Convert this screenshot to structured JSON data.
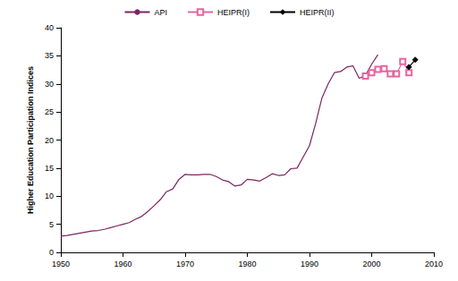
{
  "chart_data": {
    "type": "line",
    "y_label": "Higher Education Participation Indices",
    "series": [
      {
        "name": "API",
        "color": "#7d2460",
        "marker": "none",
        "line_style": "solid",
        "x": [
          1950,
          1951,
          1952,
          1953,
          1954,
          1955,
          1956,
          1957,
          1958,
          1959,
          1960,
          1961,
          1962,
          1963,
          1964,
          1965,
          1966,
          1967,
          1968,
          1969,
          1970,
          1971,
          1972,
          1973,
          1974,
          1975,
          1976,
          1977,
          1978,
          1979,
          1980,
          1981,
          1982,
          1983,
          1984,
          1985,
          1986,
          1987,
          1988,
          1989,
          1990,
          1991,
          1992,
          1993,
          1994,
          1995,
          1996,
          1997,
          1998,
          1999,
          2000,
          2001
        ],
        "values": [
          2.9,
          3.0,
          3.2,
          3.4,
          3.6,
          3.8,
          3.9,
          4.1,
          4.4,
          4.7,
          5.0,
          5.3,
          5.9,
          6.4,
          7.3,
          8.3,
          9.4,
          10.8,
          11.3,
          13.0,
          13.9,
          13.8,
          13.8,
          13.9,
          13.9,
          13.5,
          12.9,
          12.6,
          11.8,
          12.0,
          13.0,
          12.9,
          12.7,
          13.3,
          14.0,
          13.7,
          13.8,
          14.9,
          15.0,
          17.0,
          19.0,
          23.0,
          27.5,
          30.0,
          32.0,
          32.2,
          33.0,
          33.2,
          31.0,
          31.5,
          33.5,
          35.2
        ]
      },
      {
        "name": "HEIPR(I)",
        "color": "#e8649f",
        "marker": "square-open",
        "line_style": "solid",
        "x": [
          1999,
          2000,
          2001,
          2002,
          2003,
          2004,
          2005,
          2006
        ],
        "values": [
          31.4,
          32.0,
          32.6,
          32.7,
          31.8,
          31.8,
          34.0,
          32.0
        ]
      },
      {
        "name": "HEIPR(II)",
        "color": "#000000",
        "marker": "diamond",
        "line_style": "solid",
        "x": [
          2006,
          2007
        ],
        "values": [
          33.0,
          34.3
        ]
      }
    ],
    "xlim": [
      1950,
      2010
    ],
    "xticks": [
      1950,
      1960,
      1970,
      1980,
      1990,
      2000,
      2010
    ],
    "ylim": [
      0,
      40
    ],
    "yticks": [
      0,
      5,
      10,
      15,
      20,
      25,
      30,
      35,
      40
    ],
    "grid": false,
    "legend": "top"
  }
}
